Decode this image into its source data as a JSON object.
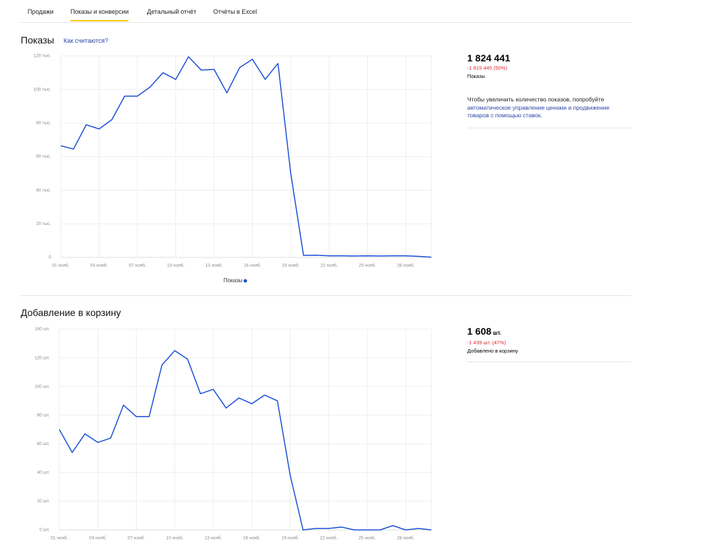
{
  "tabs": [
    "Продажи",
    "Показы и конверсии",
    "Детальный отчёт",
    "Отчёты в Excel"
  ],
  "chart_data": [
    {
      "type": "line",
      "title": "Показы",
      "link": "Как считаются?",
      "categories": [
        "01 нояб.",
        null,
        null,
        "04 нояб.",
        null,
        null,
        "07 нояб.",
        null,
        null,
        "10 нояб.",
        null,
        null,
        "13 нояб.",
        null,
        null,
        "16 нояб.",
        null,
        null,
        "19 нояб.",
        null,
        null,
        "22 нояб.",
        null,
        null,
        "25 нояб.",
        null,
        null,
        "28 нояб.",
        null,
        null
      ],
      "series": [
        {
          "name": "Показы",
          "color": "#1a4fd6",
          "values": [
            66500,
            64500,
            79000,
            76500,
            82000,
            96000,
            96000,
            101500,
            110000,
            106000,
            119500,
            111500,
            112000,
            98000,
            113000,
            118000,
            106000,
            115500,
            50000,
            1200,
            1300,
            900,
            900,
            800,
            900,
            800,
            900,
            900,
            600,
            100
          ]
        }
      ],
      "ylim": [
        0,
        120000
      ],
      "yticks": [
        0,
        {
          "value": 20000,
          "label": "20 тыс."
        },
        {
          "value": 40000,
          "label": "40 тыс."
        },
        {
          "value": 60000,
          "label": "60 тыс."
        },
        {
          "value": 80000,
          "label": "80 тыс."
        },
        {
          "value": 100000,
          "label": "100 тыс."
        },
        {
          "value": 120000,
          "label": "120 тыс."
        }
      ],
      "grid": true,
      "legend": "bottom"
    },
    {
      "type": "line",
      "title": "Добавление в корзину",
      "categories": [
        "01 нояб.",
        null,
        null,
        "04 нояб.",
        null,
        null,
        "07 нояб.",
        null,
        null,
        "10 нояб.",
        null,
        null,
        "13 нояб.",
        null,
        null,
        "16 нояб.",
        null,
        null,
        "19 нояб.",
        null,
        null,
        "22 нояб.",
        null,
        null,
        "25 нояб.",
        null,
        null,
        "28 нояб.",
        null,
        null
      ],
      "series": [
        {
          "color": "#1a4fd6",
          "values": [
            70,
            54,
            67,
            61,
            64,
            87,
            79,
            79,
            115,
            125,
            119,
            95,
            98,
            85,
            92,
            88,
            94,
            90,
            38,
            0,
            1,
            1,
            2,
            0,
            0,
            0,
            3,
            0,
            1,
            0
          ]
        }
      ],
      "ylim": [
        0,
        140
      ],
      "yticks": [
        {
          "value": 0,
          "label": "0 шт."
        },
        {
          "value": 20,
          "label": "20 шт."
        },
        {
          "value": 40,
          "label": "40 шт."
        },
        {
          "value": 60,
          "label": "60 шт."
        },
        {
          "value": 80,
          "label": "80 шт."
        },
        {
          "value": 100,
          "label": "100 шт."
        },
        {
          "value": 120,
          "label": "120 шт."
        },
        {
          "value": 140,
          "label": "140 шт."
        }
      ],
      "grid": true
    }
  ],
  "summary": [
    {
      "value": "1 824 441",
      "change": "-1 815 445 (50%)",
      "label": "Показы",
      "hint": "Чтобы увеличить количество показов, попробуйте",
      "hint_link": "автоматическое управление ценами и продвижение товаров с помощью ставок."
    },
    {
      "value": "1 608",
      "unit": "шт.",
      "change": "-1 439 шт. (47%)",
      "label": "Добавлено в корзину"
    }
  ]
}
